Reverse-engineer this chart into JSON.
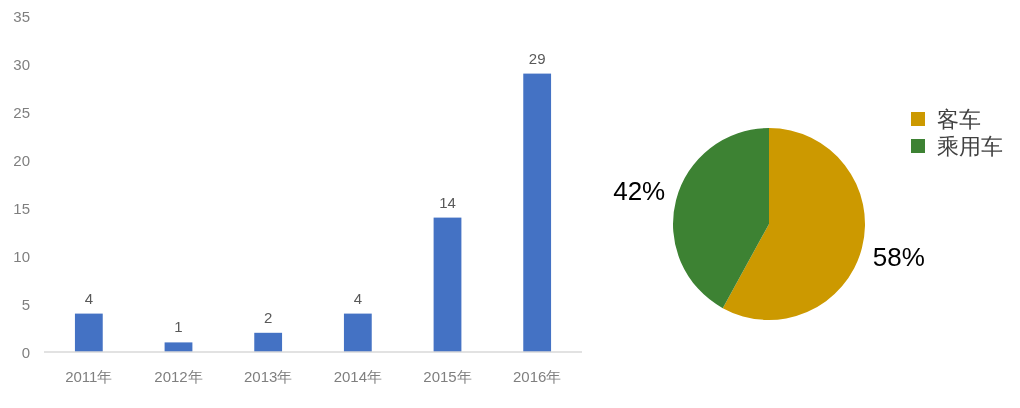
{
  "chart_data": [
    {
      "type": "bar",
      "categories": [
        "2011年",
        "2012年",
        "2013年",
        "2014年",
        "2015年",
        "2016年"
      ],
      "values": [
        4,
        1,
        2,
        4,
        14,
        29
      ],
      "color": "#4472c4",
      "ylim": [
        0,
        35
      ],
      "yticks": [
        0,
        5,
        10,
        15,
        20,
        25,
        30,
        35
      ],
      "data_labels": true,
      "grid": false
    },
    {
      "type": "pie",
      "categories": [
        "客车",
        "乘用车"
      ],
      "values": [
        58,
        42
      ],
      "colors": [
        "#cc9900",
        "#3d8233"
      ],
      "value_labels": [
        "58%",
        "42%"
      ],
      "legend": "top right"
    }
  ]
}
